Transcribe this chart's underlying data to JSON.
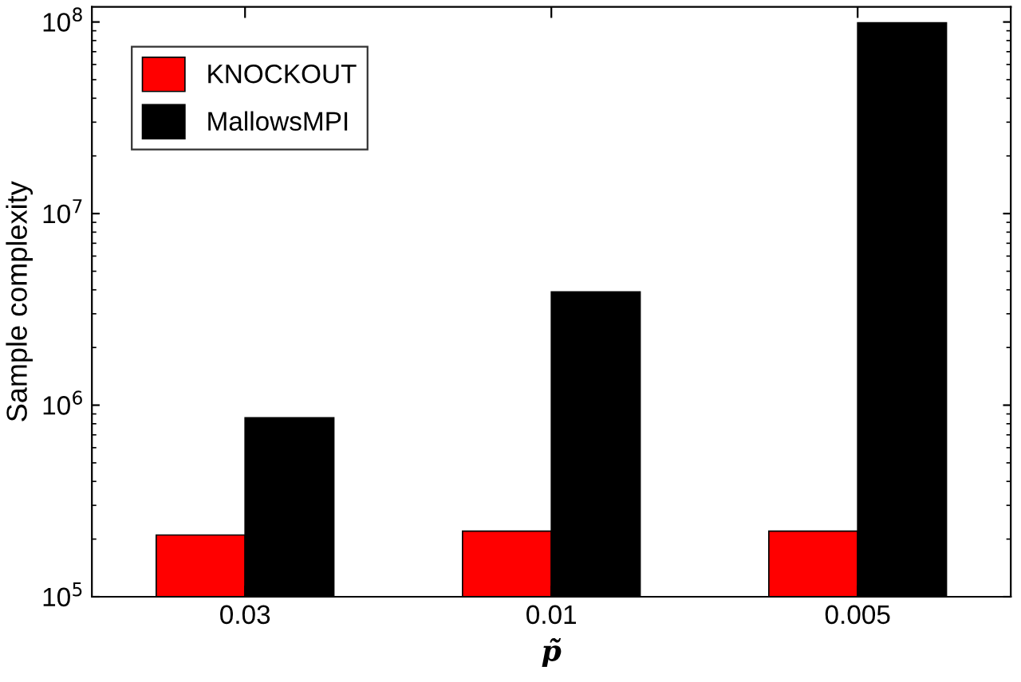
{
  "chart_data": {
    "type": "bar",
    "xlabel": "p̃",
    "ylabel": "Sample complexity",
    "categories": [
      "0.03",
      "0.01",
      "0.005"
    ],
    "series": [
      {
        "name": "KNOCKOUT",
        "color": "#ff0000",
        "values": [
          210000,
          220000,
          220000
        ]
      },
      {
        "name": "MallowsMPI",
        "color": "#000000",
        "values": [
          860000,
          3900000,
          99000000
        ]
      }
    ],
    "log": true,
    "ylim": [
      100000,
      120000000
    ],
    "yticks": [
      {
        "value": 100000,
        "label": "10$^{5}$"
      },
      {
        "value": 1000000,
        "label": "10$^{6}$"
      },
      {
        "value": 10000000,
        "label": "10$^{7}$"
      },
      {
        "value": 100000000,
        "label": "10$^{8}$"
      }
    ],
    "grid": false,
    "legend": "top left"
  }
}
